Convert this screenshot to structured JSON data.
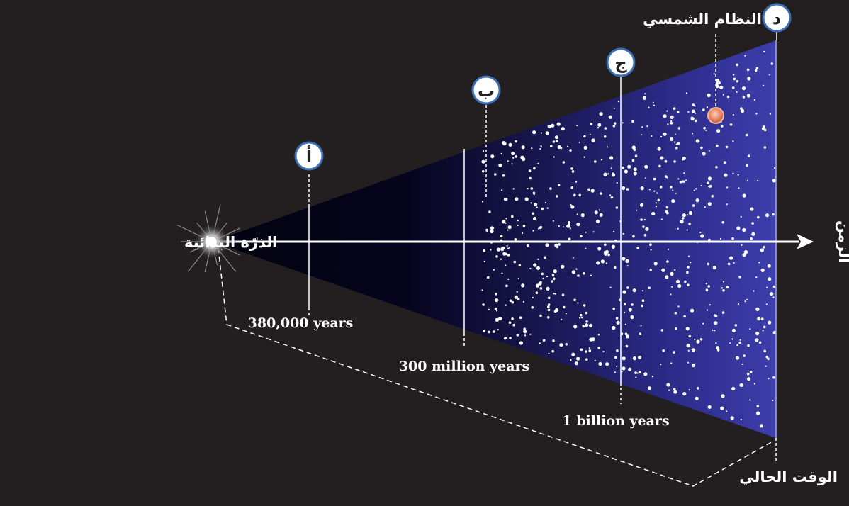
{
  "origin_label": "الذرّة البدائية",
  "time_axis_label": "الزمن",
  "present_label": "الوقت الحالي",
  "solar_system_label": "النظام الشمسي",
  "markers": [
    {
      "letter": "أ",
      "time": "380,000 years"
    },
    {
      "letter": "ب",
      "time": "300 million years"
    },
    {
      "letter": "ج",
      "time": "1 billion years"
    },
    {
      "letter": "د",
      "time": ""
    }
  ],
  "colors": {
    "background": "#231f20",
    "cone_dark": "#04041a",
    "cone_light": "#3b3ca8",
    "marker_fill": "#ffffff",
    "marker_ring": "#3a6fb5",
    "marker_text": "#231f20",
    "sun": "#e9856a"
  }
}
